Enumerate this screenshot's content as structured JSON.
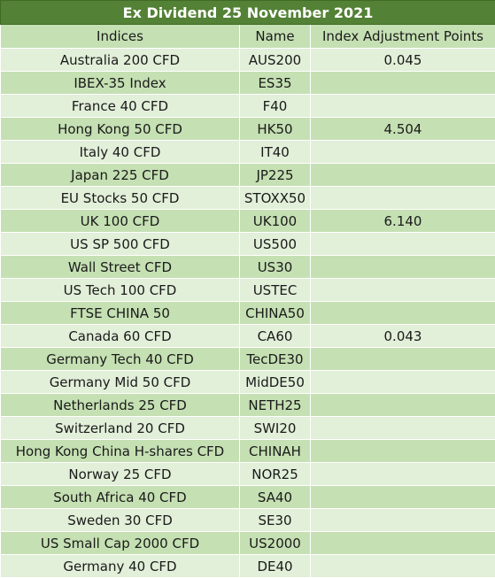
{
  "title": "Ex Dividend 25 November 2021",
  "columns": [
    "Indices",
    "Name",
    "Index Adjustment Points"
  ],
  "rows": [
    {
      "index": "Australia 200 CFD",
      "name": "AUS200",
      "points": "0.045"
    },
    {
      "index": "IBEX-35 Index",
      "name": "ES35",
      "points": ""
    },
    {
      "index": "France 40 CFD",
      "name": "F40",
      "points": ""
    },
    {
      "index": "Hong Kong 50 CFD",
      "name": "HK50",
      "points": "4.504"
    },
    {
      "index": "Italy 40 CFD",
      "name": "IT40",
      "points": ""
    },
    {
      "index": "Japan 225 CFD",
      "name": "JP225",
      "points": ""
    },
    {
      "index": "EU Stocks 50 CFD",
      "name": "STOXX50",
      "points": ""
    },
    {
      "index": "UK 100 CFD",
      "name": "UK100",
      "points": "6.140"
    },
    {
      "index": "US SP 500 CFD",
      "name": "US500",
      "points": ""
    },
    {
      "index": "Wall Street CFD",
      "name": "US30",
      "points": ""
    },
    {
      "index": "US Tech 100 CFD",
      "name": "USTEC",
      "points": ""
    },
    {
      "index": "FTSE CHINA 50",
      "name": "CHINA50",
      "points": ""
    },
    {
      "index": "Canada 60 CFD",
      "name": "CA60",
      "points": "0.043"
    },
    {
      "index": "Germany Tech 40 CFD",
      "name": "TecDE30",
      "points": ""
    },
    {
      "index": "Germany Mid 50 CFD",
      "name": "MidDE50",
      "points": ""
    },
    {
      "index": "Netherlands 25 CFD",
      "name": "NETH25",
      "points": ""
    },
    {
      "index": "Switzerland 20 CFD",
      "name": "SWI20",
      "points": ""
    },
    {
      "index": "Hong Kong China H-shares CFD",
      "name": "CHINAH",
      "points": ""
    },
    {
      "index": "Norway 25 CFD",
      "name": "NOR25",
      "points": ""
    },
    {
      "index": "South Africa 40 CFD",
      "name": "SA40",
      "points": ""
    },
    {
      "index": "Sweden 30 CFD",
      "name": "SE30",
      "points": ""
    },
    {
      "index": "US Small Cap 2000 CFD",
      "name": "US2000",
      "points": ""
    },
    {
      "index": "Germany 40 CFD",
      "name": "DE40",
      "points": ""
    }
  ],
  "colors": {
    "title_bg": "#538135",
    "header_bg": "#c5e0b3",
    "row_light": "#e2efd9",
    "row_dark": "#c5e0b3"
  }
}
